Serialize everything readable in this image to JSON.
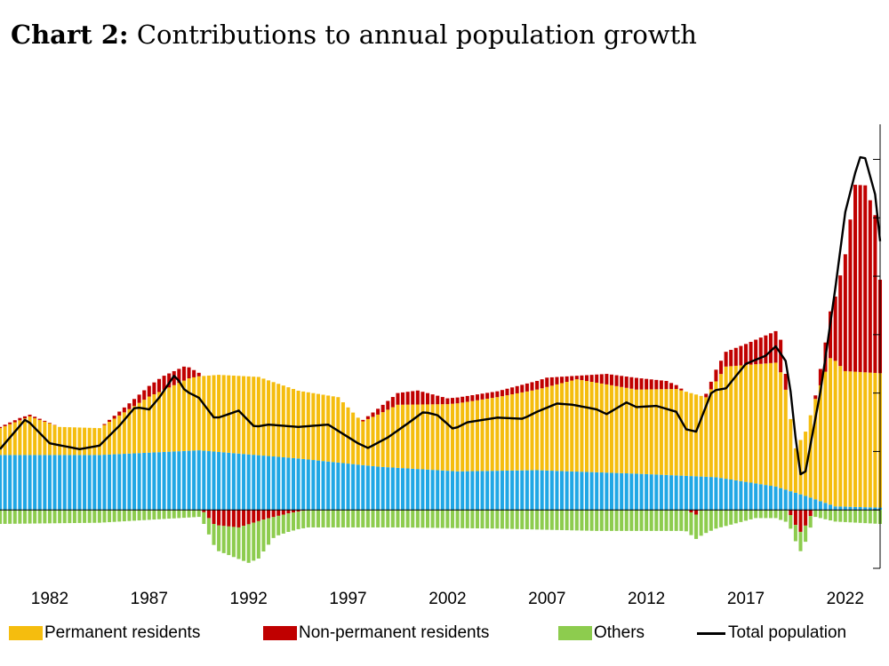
{
  "title_bold": "Chart 2:",
  "title_text": "Contributions to annual population growth",
  "chart_data": {
    "type": "bar",
    "stacked": true,
    "title": "Chart 2: Contributions to annual population growth",
    "unit": "percent (year-over-year)",
    "frequency": "quarterly",
    "start_year": 1980,
    "xlim": [
      1980.0,
      2024.25
    ],
    "ylim": [
      -0.5,
      3.3
    ],
    "xticks": [
      "1982",
      "1987",
      "1992",
      "1997",
      "2002",
      "2007",
      "2012",
      "2017",
      "2022"
    ],
    "yticks_labeled": false,
    "colors": {
      "permanent": "#F5BD0E",
      "non_permanent": "#C00000",
      "others": "#8DCC4E",
      "fourth_component": "#20A7E5",
      "total_line": "#000000"
    },
    "series_anchors": [
      {
        "name": "Natural increase / base component (blue)",
        "year": [
          1980,
          1985,
          1990,
          1995,
          1999,
          2003,
          2007,
          2012,
          2016,
          2019,
          2020.5,
          2022,
          2024.25
        ],
        "value": [
          0.47,
          0.47,
          0.51,
          0.44,
          0.37,
          0.33,
          0.34,
          0.31,
          0.28,
          0.2,
          0.12,
          0.03,
          0.02
        ]
      },
      {
        "name": "Permanent residents",
        "year": [
          1980,
          1981.5,
          1983,
          1985,
          1987.5,
          1989.5,
          1991,
          1993,
          1995,
          1997,
          1998.2,
          2000,
          2002.5,
          2005,
          2007,
          2009,
          2012,
          2014,
          2015.5,
          2016.5,
          2019,
          2019.4,
          2020.0,
          2020.5,
          2021.0,
          2021.8,
          2022.5,
          2024.25
        ],
        "value": [
          0.23,
          0.33,
          0.24,
          0.23,
          0.48,
          0.62,
          0.66,
          0.67,
          0.58,
          0.56,
          0.37,
          0.54,
          0.57,
          0.63,
          0.69,
          0.79,
          0.72,
          0.74,
          0.68,
          0.96,
          1.06,
          0.95,
          0.38,
          0.55,
          0.86,
          1.28,
          1.16,
          1.15
        ]
      },
      {
        "name": "Non-permanent residents",
        "year": [
          1980,
          1981,
          1983,
          1985,
          1986.5,
          1988.2,
          1989.3,
          1990.0,
          1990.8,
          1992,
          1993.3,
          1994.5,
          1995.5,
          1998,
          2000,
          2001,
          2002.5,
          2005,
          2007.5,
          2009,
          2010.5,
          2012,
          2013.5,
          2015,
          2016.0,
          2017.5,
          2019.0,
          2019.3,
          2019.8,
          2020.3,
          2021.0,
          2021.5,
          2022.0,
          2022.5,
          2023.0,
          2023.5,
          2024.0,
          2024.25
        ],
        "value": [
          0.01,
          0.02,
          0.0,
          0.0,
          0.05,
          0.12,
          0.12,
          0.03,
          -0.13,
          -0.15,
          -0.08,
          -0.03,
          0.0,
          0.0,
          0.1,
          0.12,
          0.05,
          0.05,
          0.08,
          0.03,
          0.09,
          0.1,
          0.07,
          -0.04,
          0.1,
          0.18,
          0.27,
          0.28,
          -0.08,
          -0.2,
          0.03,
          0.25,
          0.55,
          1.0,
          1.6,
          1.6,
          1.35,
          0.8
        ]
      },
      {
        "name": "Others",
        "year": [
          1980,
          1985,
          1990.0,
          1991.0,
          1992.0,
          1992.5,
          1993.0,
          1993.8,
          1995,
          2000,
          2005,
          2010,
          2014.5,
          2015.2,
          2016,
          2018,
          2019.0,
          2019.8,
          2020.3,
          2021.0,
          2022,
          2024.25
        ],
        "value": [
          -0.12,
          -0.11,
          -0.06,
          -0.22,
          -0.27,
          -0.33,
          -0.32,
          -0.17,
          -0.15,
          -0.15,
          -0.16,
          -0.18,
          -0.18,
          -0.22,
          -0.16,
          -0.07,
          -0.07,
          -0.12,
          -0.17,
          -0.06,
          -0.1,
          -0.12
        ]
      },
      {
        "name": "Total population",
        "year": [
          1980,
          1981.3,
          1982.5,
          1984,
          1985,
          1986,
          1986.8,
          1987.5,
          1988.0,
          1988.8,
          1989.3,
          1990.0,
          1990.8,
          1991.5,
          1992.0,
          1992.8,
          1993.5,
          1995,
          1996.5,
          1998.0,
          1998.5,
          1999.5,
          2000.5,
          2001.3,
          2002.0,
          2002.8,
          2003.5,
          2005.0,
          2006.3,
          2007.0,
          2008.0,
          2008.8,
          2010.0,
          2010.5,
          2011.5,
          2012.0,
          2013.0,
          2014.0,
          2014.5,
          2015.0,
          2015.8,
          2016.5,
          2017.5,
          2018.5,
          2019.0,
          2019.6,
          2020.2,
          2020.5,
          2021.3,
          2022.0,
          2022.5,
          2023.2,
          2023.5,
          2024.0,
          2024.25
        ],
        "value": [
          0.52,
          0.78,
          0.57,
          0.52,
          0.55,
          0.72,
          0.88,
          0.86,
          0.96,
          1.16,
          1.02,
          0.96,
          0.78,
          0.82,
          0.85,
          0.71,
          0.73,
          0.71,
          0.73,
          0.57,
          0.53,
          0.62,
          0.74,
          0.84,
          0.81,
          0.69,
          0.75,
          0.79,
          0.78,
          0.84,
          0.91,
          0.9,
          0.86,
          0.82,
          0.92,
          0.88,
          0.89,
          0.84,
          0.69,
          0.67,
          1.02,
          1.04,
          1.25,
          1.32,
          1.4,
          1.25,
          0.3,
          0.33,
          1.06,
          1.9,
          2.55,
          3.02,
          3.01,
          2.7,
          2.3
        ]
      }
    ]
  },
  "legend": {
    "permanent": "Permanent residents",
    "non_permanent": "Non-permanent residents",
    "others": "Others",
    "total": "Total population"
  }
}
